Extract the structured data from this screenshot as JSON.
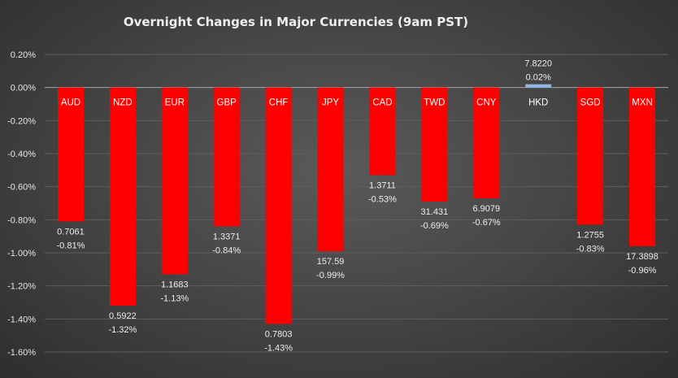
{
  "chart_data": {
    "type": "bar",
    "title": "Overnight Changes in Major Currencies (9am PST)",
    "xlabel": "",
    "ylabel": "",
    "ylim": [
      -1.6,
      0.2
    ],
    "yticks": [
      "0.20%",
      "0.00%",
      "-0.20%",
      "-0.40%",
      "-0.60%",
      "-0.80%",
      "-1.00%",
      "-1.20%",
      "-1.40%",
      "-1.60%"
    ],
    "grid": true,
    "categories": [
      "AUD",
      "NZD",
      "EUR",
      "GBP",
      "CHF",
      "JPY",
      "CAD",
      "TWD",
      "CNY",
      "HKD",
      "SGD",
      "MXN"
    ],
    "values": [
      -0.81,
      -1.32,
      -1.13,
      -0.84,
      -1.43,
      -0.99,
      -0.53,
      -0.69,
      -0.67,
      0.02,
      -0.83,
      -0.96
    ],
    "percent_labels": [
      "-0.81%",
      "-1.32%",
      "-1.13%",
      "-0.84%",
      "-1.43%",
      "-0.99%",
      "-0.53%",
      "-0.69%",
      "-0.67%",
      "0.02%",
      "-0.83%",
      "-0.96%"
    ],
    "rate_labels": [
      "0.7061",
      "0.5922",
      "1.1683",
      "1.3371",
      "0.7803",
      "157.59",
      "1.3711",
      "31.431",
      "6.9079",
      "7.8220",
      "1.2755",
      "17.3898"
    ],
    "colors": {
      "negative": "#ff0000",
      "positive": "#8fb4e3"
    }
  }
}
